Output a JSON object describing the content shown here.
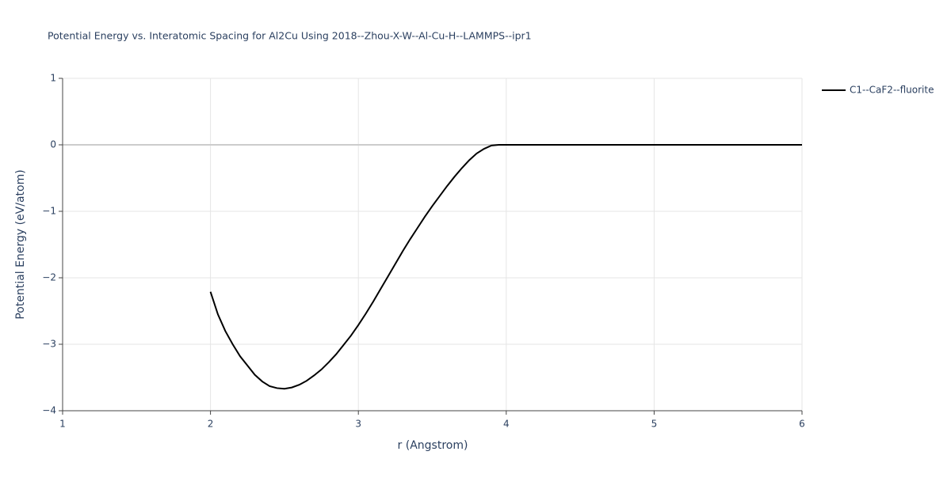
{
  "chart_data": {
    "type": "line",
    "title": "Potential Energy vs. Interatomic Spacing for Al2Cu Using 2018--Zhou-X-W--Al-Cu-H--LAMMPS--ipr1",
    "x_label": "r (Angstrom)",
    "y_label": "Potential Energy (eV/atom)",
    "x": [
      2.0,
      2.05,
      2.1,
      2.15,
      2.2,
      2.25,
      2.3,
      2.35,
      2.4,
      2.45,
      2.5,
      2.55,
      2.6,
      2.65,
      2.7,
      2.75,
      2.8,
      2.85,
      2.9,
      2.95,
      3.0,
      3.05,
      3.1,
      3.15,
      3.2,
      3.25,
      3.3,
      3.35,
      3.4,
      3.45,
      3.5,
      3.55,
      3.6,
      3.65,
      3.7,
      3.75,
      3.8,
      3.85,
      3.9,
      3.95,
      4.0,
      4.5,
      5.0,
      5.5,
      6.0
    ],
    "series": [
      {
        "name": "C1--CaF2--fluorite",
        "color": "#000000",
        "values": [
          -2.21,
          -2.55,
          -2.8,
          -3.0,
          -3.18,
          -3.32,
          -3.46,
          -3.56,
          -3.63,
          -3.66,
          -3.67,
          -3.65,
          -3.61,
          -3.55,
          -3.47,
          -3.38,
          -3.27,
          -3.15,
          -3.01,
          -2.87,
          -2.71,
          -2.54,
          -2.36,
          -2.17,
          -1.98,
          -1.79,
          -1.6,
          -1.42,
          -1.25,
          -1.08,
          -0.92,
          -0.77,
          -0.62,
          -0.48,
          -0.35,
          -0.23,
          -0.13,
          -0.06,
          -0.01,
          0,
          0,
          0,
          0,
          0,
          0
        ]
      }
    ],
    "xlim": [
      1,
      6
    ],
    "xticks": [
      1,
      2,
      3,
      4,
      5,
      6
    ],
    "ylim": [
      -4,
      1
    ],
    "yticks": [
      {
        "value": -4,
        "label": "−4"
      },
      {
        "value": -3,
        "label": "−3"
      },
      {
        "value": -2,
        "label": "−2"
      },
      {
        "value": -1,
        "label": "−1"
      },
      0,
      1
    ],
    "grid": true,
    "legend": "right"
  }
}
